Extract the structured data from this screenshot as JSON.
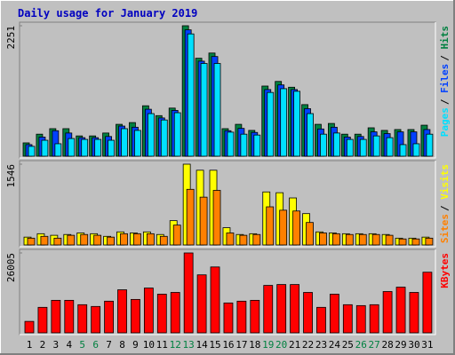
{
  "title": "Daily usage for January 2019",
  "legend_separator": "/",
  "chart_data": [
    {
      "type": "bar",
      "ylim": [
        0,
        2251
      ],
      "yticks": [
        2251
      ],
      "series": [
        {
          "name": "Hits",
          "color": "#008040",
          "values": [
            230,
            380,
            475,
            475,
            350,
            350,
            400,
            550,
            580,
            870,
            700,
            830,
            2251,
            1690,
            1780,
            475,
            550,
            445,
            1210,
            1290,
            1190,
            890,
            550,
            565,
            380,
            380,
            490,
            445,
            460,
            460,
            535
          ]
        },
        {
          "name": "Files",
          "color": "#0040ff",
          "values": [
            200,
            330,
            440,
            400,
            320,
            320,
            340,
            520,
            500,
            810,
            660,
            790,
            2180,
            1640,
            1720,
            440,
            480,
            410,
            1150,
            1230,
            1150,
            820,
            470,
            500,
            330,
            340,
            420,
            390,
            420,
            420,
            460
          ]
        },
        {
          "name": "Pages",
          "color": "#00e0ff",
          "values": [
            170,
            275,
            215,
            305,
            290,
            290,
            275,
            475,
            445,
            735,
            625,
            750,
            2110,
            1600,
            1600,
            415,
            380,
            365,
            1100,
            1165,
            1120,
            735,
            380,
            400,
            290,
            290,
            350,
            320,
            200,
            215,
            380
          ]
        }
      ]
    },
    {
      "type": "bar",
      "ylim": [
        0,
        1546
      ],
      "yticks": [
        1546
      ],
      "series": [
        {
          "name": "Visits",
          "color": "#ffff00",
          "values": [
            150,
            215,
            185,
            200,
            230,
            215,
            165,
            250,
            230,
            250,
            200,
            465,
            1546,
            1430,
            1430,
            330,
            200,
            215,
            1015,
            1000,
            900,
            600,
            250,
            230,
            215,
            215,
            215,
            200,
            130,
            130,
            150
          ]
        },
        {
          "name": "Sites",
          "color": "#ff8000",
          "values": [
            130,
            165,
            130,
            185,
            200,
            185,
            150,
            215,
            215,
            215,
            165,
            380,
            1065,
            915,
            1045,
            230,
            185,
            200,
            730,
            665,
            650,
            430,
            230,
            215,
            200,
            200,
            200,
            185,
            115,
            115,
            130
          ]
        }
      ]
    },
    {
      "type": "bar",
      "ylim": [
        0,
        26005
      ],
      "yticks": [
        26005
      ],
      "categories": [
        "1",
        "2",
        "3",
        "4",
        "5",
        "6",
        "7",
        "8",
        "9",
        "10",
        "11",
        "12",
        "13",
        "14",
        "15",
        "16",
        "17",
        "18",
        "19",
        "20",
        "21",
        "22",
        "23",
        "24",
        "25",
        "26",
        "27",
        "28",
        "29",
        "30",
        "31"
      ],
      "highlighted_categories": [
        4,
        5,
        11,
        12,
        18,
        19,
        25,
        26
      ],
      "highlight_color": "#008040",
      "series": [
        {
          "name": "KBytes",
          "color": "#ff0000",
          "values": [
            3720,
            8290,
            10580,
            10580,
            9150,
            8580,
            10300,
            14010,
            10870,
            14580,
            12580,
            13150,
            26005,
            18870,
            21440,
            9720,
            10300,
            10580,
            15440,
            15720,
            15720,
            13150,
            8290,
            12580,
            9150,
            8860,
            9150,
            13440,
            14870,
            13150,
            19730
          ]
        }
      ]
    }
  ]
}
